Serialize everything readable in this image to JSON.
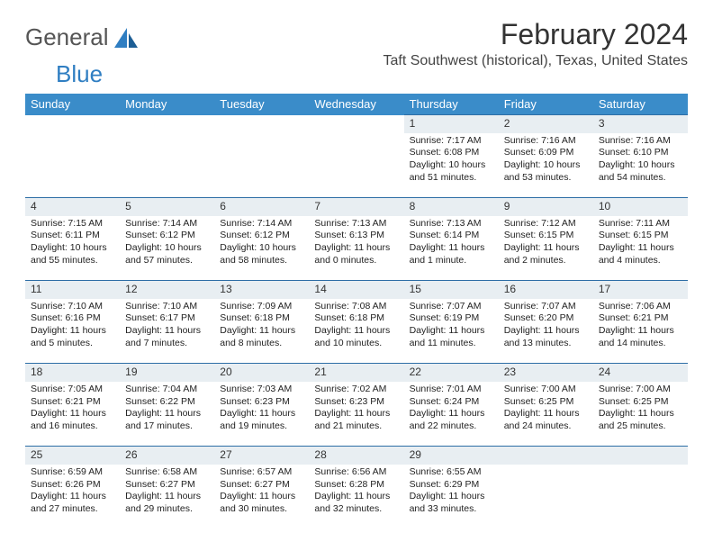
{
  "logo": {
    "word1": "General",
    "word2": "Blue"
  },
  "title": "February 2024",
  "location": "Taft Southwest (historical), Texas, United States",
  "colors": {
    "header_bg": "#3a8cc9",
    "header_text": "#ffffff",
    "daybar_bg": "#e8eef2",
    "daybar_border": "#2d6ea6",
    "logo_blue": "#2f7ec2",
    "text": "#222222"
  },
  "weekdays": [
    "Sunday",
    "Monday",
    "Tuesday",
    "Wednesday",
    "Thursday",
    "Friday",
    "Saturday"
  ],
  "weeks": [
    [
      null,
      null,
      null,
      null,
      {
        "n": "1",
        "sunrise": "Sunrise: 7:17 AM",
        "sunset": "Sunset: 6:08 PM",
        "day1": "Daylight: 10 hours",
        "day2": "and 51 minutes."
      },
      {
        "n": "2",
        "sunrise": "Sunrise: 7:16 AM",
        "sunset": "Sunset: 6:09 PM",
        "day1": "Daylight: 10 hours",
        "day2": "and 53 minutes."
      },
      {
        "n": "3",
        "sunrise": "Sunrise: 7:16 AM",
        "sunset": "Sunset: 6:10 PM",
        "day1": "Daylight: 10 hours",
        "day2": "and 54 minutes."
      }
    ],
    [
      {
        "n": "4",
        "sunrise": "Sunrise: 7:15 AM",
        "sunset": "Sunset: 6:11 PM",
        "day1": "Daylight: 10 hours",
        "day2": "and 55 minutes."
      },
      {
        "n": "5",
        "sunrise": "Sunrise: 7:14 AM",
        "sunset": "Sunset: 6:12 PM",
        "day1": "Daylight: 10 hours",
        "day2": "and 57 minutes."
      },
      {
        "n": "6",
        "sunrise": "Sunrise: 7:14 AM",
        "sunset": "Sunset: 6:12 PM",
        "day1": "Daylight: 10 hours",
        "day2": "and 58 minutes."
      },
      {
        "n": "7",
        "sunrise": "Sunrise: 7:13 AM",
        "sunset": "Sunset: 6:13 PM",
        "day1": "Daylight: 11 hours",
        "day2": "and 0 minutes."
      },
      {
        "n": "8",
        "sunrise": "Sunrise: 7:13 AM",
        "sunset": "Sunset: 6:14 PM",
        "day1": "Daylight: 11 hours",
        "day2": "and 1 minute."
      },
      {
        "n": "9",
        "sunrise": "Sunrise: 7:12 AM",
        "sunset": "Sunset: 6:15 PM",
        "day1": "Daylight: 11 hours",
        "day2": "and 2 minutes."
      },
      {
        "n": "10",
        "sunrise": "Sunrise: 7:11 AM",
        "sunset": "Sunset: 6:15 PM",
        "day1": "Daylight: 11 hours",
        "day2": "and 4 minutes."
      }
    ],
    [
      {
        "n": "11",
        "sunrise": "Sunrise: 7:10 AM",
        "sunset": "Sunset: 6:16 PM",
        "day1": "Daylight: 11 hours",
        "day2": "and 5 minutes."
      },
      {
        "n": "12",
        "sunrise": "Sunrise: 7:10 AM",
        "sunset": "Sunset: 6:17 PM",
        "day1": "Daylight: 11 hours",
        "day2": "and 7 minutes."
      },
      {
        "n": "13",
        "sunrise": "Sunrise: 7:09 AM",
        "sunset": "Sunset: 6:18 PM",
        "day1": "Daylight: 11 hours",
        "day2": "and 8 minutes."
      },
      {
        "n": "14",
        "sunrise": "Sunrise: 7:08 AM",
        "sunset": "Sunset: 6:18 PM",
        "day1": "Daylight: 11 hours",
        "day2": "and 10 minutes."
      },
      {
        "n": "15",
        "sunrise": "Sunrise: 7:07 AM",
        "sunset": "Sunset: 6:19 PM",
        "day1": "Daylight: 11 hours",
        "day2": "and 11 minutes."
      },
      {
        "n": "16",
        "sunrise": "Sunrise: 7:07 AM",
        "sunset": "Sunset: 6:20 PM",
        "day1": "Daylight: 11 hours",
        "day2": "and 13 minutes."
      },
      {
        "n": "17",
        "sunrise": "Sunrise: 7:06 AM",
        "sunset": "Sunset: 6:21 PM",
        "day1": "Daylight: 11 hours",
        "day2": "and 14 minutes."
      }
    ],
    [
      {
        "n": "18",
        "sunrise": "Sunrise: 7:05 AM",
        "sunset": "Sunset: 6:21 PM",
        "day1": "Daylight: 11 hours",
        "day2": "and 16 minutes."
      },
      {
        "n": "19",
        "sunrise": "Sunrise: 7:04 AM",
        "sunset": "Sunset: 6:22 PM",
        "day1": "Daylight: 11 hours",
        "day2": "and 17 minutes."
      },
      {
        "n": "20",
        "sunrise": "Sunrise: 7:03 AM",
        "sunset": "Sunset: 6:23 PM",
        "day1": "Daylight: 11 hours",
        "day2": "and 19 minutes."
      },
      {
        "n": "21",
        "sunrise": "Sunrise: 7:02 AM",
        "sunset": "Sunset: 6:23 PM",
        "day1": "Daylight: 11 hours",
        "day2": "and 21 minutes."
      },
      {
        "n": "22",
        "sunrise": "Sunrise: 7:01 AM",
        "sunset": "Sunset: 6:24 PM",
        "day1": "Daylight: 11 hours",
        "day2": "and 22 minutes."
      },
      {
        "n": "23",
        "sunrise": "Sunrise: 7:00 AM",
        "sunset": "Sunset: 6:25 PM",
        "day1": "Daylight: 11 hours",
        "day2": "and 24 minutes."
      },
      {
        "n": "24",
        "sunrise": "Sunrise: 7:00 AM",
        "sunset": "Sunset: 6:25 PM",
        "day1": "Daylight: 11 hours",
        "day2": "and 25 minutes."
      }
    ],
    [
      {
        "n": "25",
        "sunrise": "Sunrise: 6:59 AM",
        "sunset": "Sunset: 6:26 PM",
        "day1": "Daylight: 11 hours",
        "day2": "and 27 minutes."
      },
      {
        "n": "26",
        "sunrise": "Sunrise: 6:58 AM",
        "sunset": "Sunset: 6:27 PM",
        "day1": "Daylight: 11 hours",
        "day2": "and 29 minutes."
      },
      {
        "n": "27",
        "sunrise": "Sunrise: 6:57 AM",
        "sunset": "Sunset: 6:27 PM",
        "day1": "Daylight: 11 hours",
        "day2": "and 30 minutes."
      },
      {
        "n": "28",
        "sunrise": "Sunrise: 6:56 AM",
        "sunset": "Sunset: 6:28 PM",
        "day1": "Daylight: 11 hours",
        "day2": "and 32 minutes."
      },
      {
        "n": "29",
        "sunrise": "Sunrise: 6:55 AM",
        "sunset": "Sunset: 6:29 PM",
        "day1": "Daylight: 11 hours",
        "day2": "and 33 minutes."
      },
      null,
      null
    ]
  ]
}
